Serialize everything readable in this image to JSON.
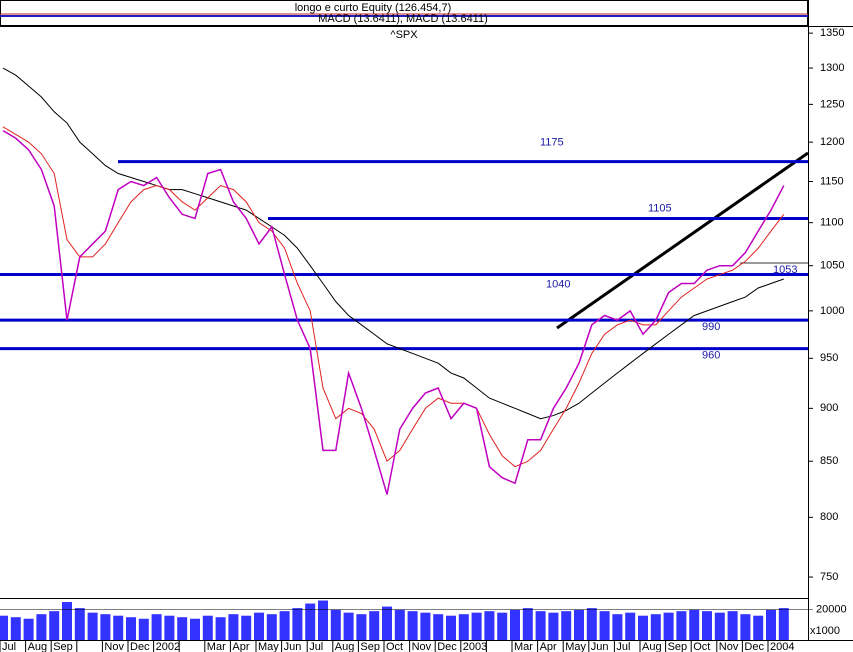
{
  "chart_data": {
    "type": "line",
    "title": "^SPX",
    "header_lines": [
      "longo e curto Equity (126.454,7)",
      "MACD (13.6411), MACD (13.6411)"
    ],
    "categories": [
      "Jul",
      null,
      "Aug",
      null,
      "Sep",
      null,
      null,
      null,
      "Nov",
      null,
      "Dec",
      null,
      "2002",
      null,
      null,
      null,
      "Mar",
      null,
      "Apr",
      null,
      "May",
      null,
      "Jun",
      null,
      "Jul",
      null,
      "Aug",
      null,
      "Sep",
      null,
      "Oct",
      null,
      "Nov",
      null,
      "Dec",
      null,
      "2003",
      null,
      null,
      null,
      "Mar",
      null,
      "Apr",
      null,
      "May",
      null,
      "Jun",
      null,
      "Jul",
      null,
      "Aug",
      null,
      "Sep",
      null,
      "Oct",
      null,
      "Nov",
      null,
      "Dec",
      null,
      "2004",
      null
    ],
    "series": [
      {
        "color": "#000000",
        "values": [
          1300,
          1290,
          1275,
          1260,
          1240,
          1225,
          1200,
          1185,
          1170,
          1160,
          1155,
          1150,
          1145,
          1140,
          1140,
          1135,
          1130,
          1125,
          1120,
          1115,
          1105,
          1095,
          1085,
          1070,
          1050,
          1030,
          1010,
          995,
          985,
          975,
          965,
          960,
          955,
          950,
          945,
          935,
          930,
          920,
          910,
          905,
          900,
          895,
          890,
          893,
          898,
          905,
          915,
          925,
          935,
          945,
          955,
          965,
          975,
          985,
          995,
          1000,
          1005,
          1010,
          1015,
          1025,
          1030,
          1035
        ]
      },
      {
        "color": "#e02020",
        "values": [
          1220,
          1210,
          1200,
          1185,
          1160,
          1080,
          1060,
          1060,
          1075,
          1100,
          1125,
          1140,
          1145,
          1140,
          1125,
          1115,
          1130,
          1145,
          1140,
          1125,
          1100,
          1090,
          1070,
          1030,
          1000,
          920,
          890,
          900,
          895,
          880,
          850,
          860,
          880,
          900,
          910,
          905,
          905,
          900,
          875,
          855,
          845,
          850,
          860,
          880,
          900,
          925,
          955,
          975,
          985,
          990,
          985,
          985,
          1000,
          1015,
          1025,
          1035,
          1040,
          1045,
          1055,
          1070,
          1090,
          1110
        ]
      },
      {
        "color": "#c000c0",
        "values": [
          1215,
          1205,
          1190,
          1165,
          1120,
          990,
          1060,
          1075,
          1090,
          1140,
          1150,
          1145,
          1155,
          1130,
          1110,
          1105,
          1160,
          1165,
          1125,
          1105,
          1075,
          1095,
          1040,
          990,
          960,
          860,
          860,
          935,
          900,
          860,
          820,
          880,
          900,
          915,
          920,
          890,
          905,
          900,
          845,
          835,
          830,
          870,
          870,
          900,
          920,
          945,
          985,
          995,
          990,
          1000,
          975,
          990,
          1020,
          1030,
          1030,
          1045,
          1050,
          1050,
          1065,
          1090,
          1115,
          1145
        ]
      }
    ],
    "levels": [
      1175,
      1105,
      1040,
      990,
      960,
      1053
    ],
    "log_y": true,
    "ylim": [
      734,
      1359
    ],
    "yticks": [
      750,
      800,
      850,
      900,
      950,
      1000,
      1050,
      1100,
      1150,
      1200,
      1250,
      1300,
      1350
    ],
    "volume": {
      "color": "#0000ff",
      "unit_label": "x1000",
      "ylim": [
        0,
        27000
      ],
      "yticks": [
        20000
      ],
      "values": [
        16000,
        15000,
        14000,
        17000,
        19000,
        25000,
        21000,
        18000,
        17000,
        16000,
        15000,
        14000,
        17000,
        16000,
        15000,
        14000,
        16000,
        15000,
        17000,
        16000,
        18000,
        17000,
        19000,
        21000,
        24000,
        26000,
        20000,
        18000,
        17000,
        19000,
        22000,
        20000,
        19000,
        18000,
        17000,
        16000,
        17000,
        18000,
        19000,
        18000,
        20000,
        21000,
        19000,
        18000,
        19000,
        20000,
        21000,
        19000,
        17000,
        18000,
        16000,
        17000,
        18000,
        19000,
        20000,
        19000,
        18000,
        19000,
        17000,
        16000,
        20000,
        21000
      ]
    }
  }
}
